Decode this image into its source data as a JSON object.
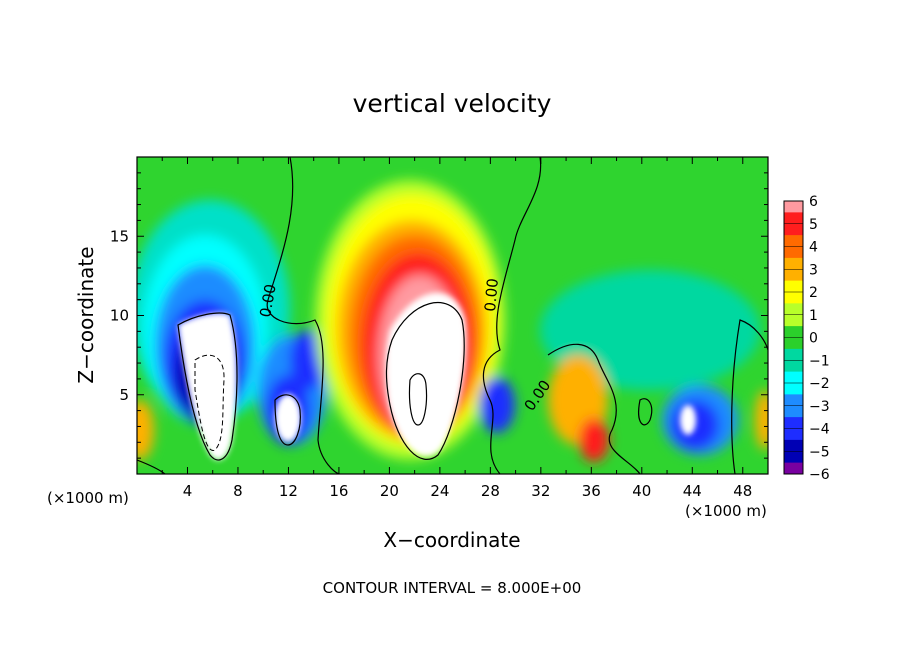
{
  "chart_data": {
    "type": "heatmap",
    "title": "vertical velocity",
    "xlabel": "X−coordinate",
    "ylabel": "Z−coordinate",
    "x_unit": "(×1000 m)",
    "x_unit_right": "(×1000 m)",
    "xlim": [
      0,
      50
    ],
    "ylim": [
      0,
      20
    ],
    "xticks": [
      "4",
      "8",
      "12",
      "16",
      "20",
      "24",
      "28",
      "32",
      "36",
      "40",
      "44",
      "48"
    ],
    "xtick_values": [
      4,
      8,
      12,
      16,
      20,
      24,
      28,
      32,
      36,
      40,
      44,
      48
    ],
    "yticks": [
      "5",
      "10",
      "15"
    ],
    "ytick_values": [
      5,
      10,
      15
    ],
    "colorbar": {
      "labels": [
        "6",
        "5",
        "4",
        "3",
        "2",
        "1",
        "0",
        "−1",
        "−2",
        "−3",
        "−4",
        "−5",
        "−6"
      ],
      "values": [
        6,
        5,
        4,
        3,
        2,
        1,
        0,
        -1,
        -2,
        -3,
        -4,
        -5,
        -6
      ],
      "colors": [
        "#ff9aa0",
        "#ff1e1e",
        "#ff6a00",
        "#ffb000",
        "#ffff00",
        "#b8ff2a",
        "#2bd02b",
        "#00d8a0",
        "#00ffff",
        "#1e8cff",
        "#1e2dff",
        "#0000b4",
        "#7800a0"
      ]
    },
    "contour_labels": [
      "0.00",
      "0.00",
      "0.00"
    ],
    "footer": "CONTOUR INTERVAL = 8.000E+00",
    "cells": [
      {
        "x": 6,
        "z": 6,
        "value": -6,
        "note": "min"
      },
      {
        "x": 22,
        "z": 6,
        "value": 6,
        "note": "max"
      },
      {
        "x": 12,
        "z": 3,
        "value": -6
      },
      {
        "x": 44,
        "z": 3,
        "value": -6
      },
      {
        "x": 36,
        "z": 2,
        "value": 4
      }
    ]
  }
}
